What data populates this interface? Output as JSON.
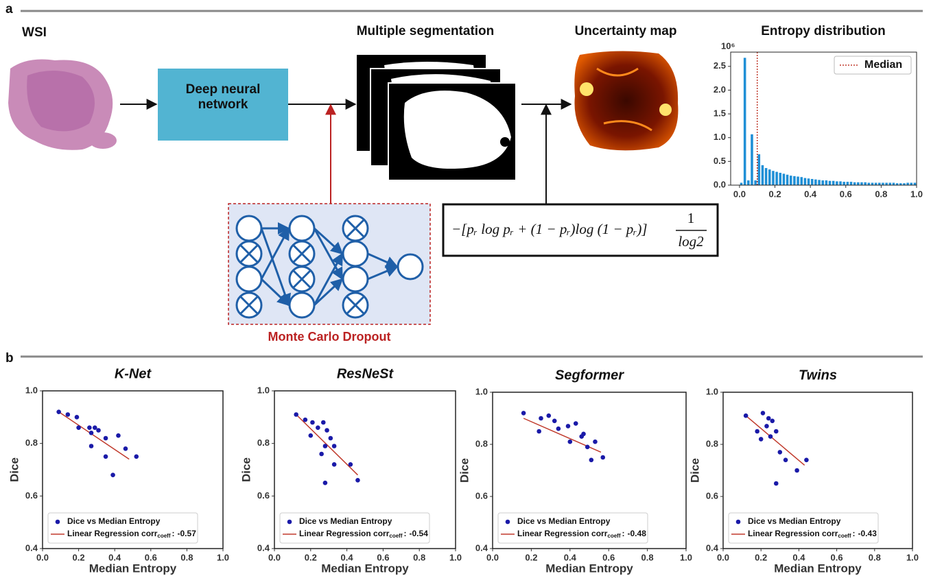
{
  "panel_a": {
    "label": "a",
    "wsi": "WSI",
    "network": "Deep neural network",
    "segmentation": "Multiple segmentation",
    "uncertainty": "Uncertainty map",
    "dropout": "Monte Carlo Dropout",
    "formula": {
      "main": "−[pᵣ log pᵣ + (1 − pᵣ)log (1 − pᵣ)]",
      "numerator": "1",
      "denominator": "log2"
    }
  },
  "panel_b": {
    "label": "b"
  },
  "chart_data": [
    {
      "type": "histogram",
      "title": "Entropy distribution",
      "y_multiplier": "10⁶",
      "color": "#1f8fd6",
      "bins": [
        0.0,
        0.02,
        0.04,
        0.06,
        0.08,
        0.1,
        0.12,
        0.14,
        0.16,
        0.18,
        0.2,
        0.22,
        0.24,
        0.26,
        0.28,
        0.3,
        0.32,
        0.34,
        0.36,
        0.38,
        0.4,
        0.42,
        0.44,
        0.46,
        0.48,
        0.5,
        0.52,
        0.54,
        0.56,
        0.58,
        0.6,
        0.62,
        0.64,
        0.66,
        0.68,
        0.7,
        0.72,
        0.74,
        0.76,
        0.78,
        0.8,
        0.82,
        0.84,
        0.86,
        0.88,
        0.9,
        0.92,
        0.94,
        0.96,
        0.98,
        1.0
      ],
      "counts": [
        0.05,
        2.68,
        0.1,
        1.07,
        0.1,
        0.65,
        0.42,
        0.36,
        0.33,
        0.3,
        0.28,
        0.26,
        0.24,
        0.22,
        0.2,
        0.19,
        0.18,
        0.17,
        0.15,
        0.14,
        0.13,
        0.12,
        0.11,
        0.1,
        0.1,
        0.09,
        0.09,
        0.08,
        0.08,
        0.07,
        0.07,
        0.07,
        0.06,
        0.06,
        0.06,
        0.06,
        0.05,
        0.05,
        0.05,
        0.05,
        0.05,
        0.05,
        0.05,
        0.05,
        0.04,
        0.04,
        0.04,
        0.05,
        0.05,
        0.05
      ],
      "median": {
        "name": "Median",
        "value": 0.1,
        "color": "#c0392b"
      },
      "legend": "upper right",
      "xlim": [
        -0.05,
        1.0
      ],
      "ylim": [
        0,
        2.8
      ],
      "xticks": [
        {
          "value": 0.0,
          "label": "0.0"
        },
        0.2,
        0.4,
        0.6,
        0.8,
        {
          "value": 1.0,
          "label": "1.0"
        }
      ],
      "yticks": [
        {
          "value": 0.0,
          "label": "0.0"
        },
        0.5,
        {
          "value": 1.0,
          "label": "1.0"
        },
        1.5,
        {
          "value": 2.0,
          "label": "2.0"
        },
        2.5
      ]
    },
    {
      "type": "scatter",
      "title": "K-Net",
      "xlabel": "Median Entropy",
      "ylabel": "Dice",
      "xlim": [
        0,
        1
      ],
      "ylim": [
        0.4,
        1.0
      ],
      "xticks": [
        {
          "value": 0,
          "label": "0.0"
        },
        0.2,
        0.4,
        0.6,
        0.8,
        {
          "value": 1,
          "label": "1.0"
        }
      ],
      "yticks": [
        0.4,
        0.6,
        0.8,
        {
          "value": 1,
          "label": "1.0"
        }
      ],
      "series": [
        {
          "name": "Dice vs Median Entropy",
          "color": "#1a1aa8",
          "x": [
            0.09,
            0.14,
            0.19,
            0.2,
            0.26,
            0.27,
            0.27,
            0.29,
            0.31,
            0.35,
            0.35,
            0.39,
            0.42,
            0.46,
            0.52
          ],
          "values": [
            0.92,
            0.91,
            0.9,
            0.86,
            0.86,
            0.84,
            0.79,
            0.86,
            0.85,
            0.82,
            0.75,
            0.68,
            0.83,
            0.78,
            0.75
          ]
        }
      ],
      "regression": {
        "name": "Linear Regression corr",
        "subscript": "coeff",
        "separator": ":",
        "corr": -0.57,
        "color": "#c0392b",
        "x": [
          0.09,
          0.48
        ],
        "values": [
          0.92,
          0.74
        ]
      }
    },
    {
      "type": "scatter",
      "title": "ResNeSt",
      "xlabel": "Median Entropy",
      "ylabel": "Dice",
      "xlim": [
        0,
        1
      ],
      "ylim": [
        0.4,
        1.0
      ],
      "xticks": [
        {
          "value": 0,
          "label": "0.0"
        },
        0.2,
        0.4,
        0.6,
        0.8,
        {
          "value": 1,
          "label": "1.0"
        }
      ],
      "yticks": [
        0.4,
        0.6,
        0.8,
        {
          "value": 1,
          "label": "1.0"
        }
      ],
      "series": [
        {
          "name": "Dice vs Median Entropy",
          "color": "#1a1aa8",
          "x": [
            0.12,
            0.17,
            0.2,
            0.21,
            0.24,
            0.26,
            0.27,
            0.28,
            0.28,
            0.29,
            0.31,
            0.33,
            0.33,
            0.42,
            0.46
          ],
          "values": [
            0.91,
            0.89,
            0.83,
            0.88,
            0.86,
            0.76,
            0.88,
            0.79,
            0.65,
            0.85,
            0.82,
            0.79,
            0.72,
            0.72,
            0.66
          ]
        }
      ],
      "regression": {
        "name": "Linear Regression corr",
        "subscript": "coeff",
        "separator": ":",
        "corr": -0.54,
        "color": "#c0392b",
        "x": [
          0.12,
          0.46
        ],
        "values": [
          0.91,
          0.68
        ]
      }
    },
    {
      "type": "scatter",
      "title": "Segformer",
      "xlabel": "Median Entropy",
      "ylabel": "Dice",
      "xlim": [
        0,
        1
      ],
      "ylim": [
        0.4,
        1.0
      ],
      "xticks": [
        {
          "value": 0,
          "label": "0.0"
        },
        0.2,
        0.4,
        0.6,
        0.8,
        {
          "value": 1,
          "label": "1.0"
        }
      ],
      "yticks": [
        0.4,
        0.6,
        0.8,
        {
          "value": 1,
          "label": "1.0"
        }
      ],
      "series": [
        {
          "name": "Dice vs Median Entropy",
          "color": "#1a1aa8",
          "x": [
            0.16,
            0.24,
            0.25,
            0.29,
            0.32,
            0.34,
            0.39,
            0.4,
            0.43,
            0.46,
            0.47,
            0.49,
            0.51,
            0.53,
            0.57
          ],
          "values": [
            0.92,
            0.85,
            0.9,
            0.91,
            0.89,
            0.86,
            0.87,
            0.81,
            0.88,
            0.83,
            0.84,
            0.79,
            0.74,
            0.81,
            0.75
          ]
        }
      ],
      "regression": {
        "name": "Linear Regression corr",
        "subscript": "coeff",
        "separator": ":",
        "corr": -0.48,
        "color": "#c0392b",
        "x": [
          0.16,
          0.56
        ],
        "values": [
          0.9,
          0.77
        ]
      }
    },
    {
      "type": "scatter",
      "title": "Twins",
      "xlabel": "Median Entropy",
      "ylabel": "Dice",
      "xlim": [
        0,
        1
      ],
      "ylim": [
        0.4,
        1.0
      ],
      "xticks": [
        {
          "value": 0,
          "label": "0.0"
        },
        0.2,
        0.4,
        0.6,
        0.8,
        {
          "value": 1,
          "label": "1.0"
        }
      ],
      "yticks": [
        0.4,
        0.6,
        0.8,
        {
          "value": 1,
          "label": "1.0"
        }
      ],
      "series": [
        {
          "name": "Dice vs Median Entropy",
          "color": "#1a1aa8",
          "x": [
            0.12,
            0.18,
            0.2,
            0.21,
            0.23,
            0.24,
            0.25,
            0.26,
            0.28,
            0.28,
            0.3,
            0.33,
            0.39,
            0.44
          ],
          "values": [
            0.91,
            0.85,
            0.82,
            0.92,
            0.87,
            0.9,
            0.83,
            0.89,
            0.85,
            0.65,
            0.77,
            0.74,
            0.7,
            0.74
          ]
        }
      ],
      "regression": {
        "name": "Linear Regression corr",
        "subscript": "coeff",
        "separator": ":",
        "corr": -0.43,
        "color": "#c0392b",
        "x": [
          0.12,
          0.43
        ],
        "values": [
          0.91,
          0.72
        ]
      }
    }
  ]
}
